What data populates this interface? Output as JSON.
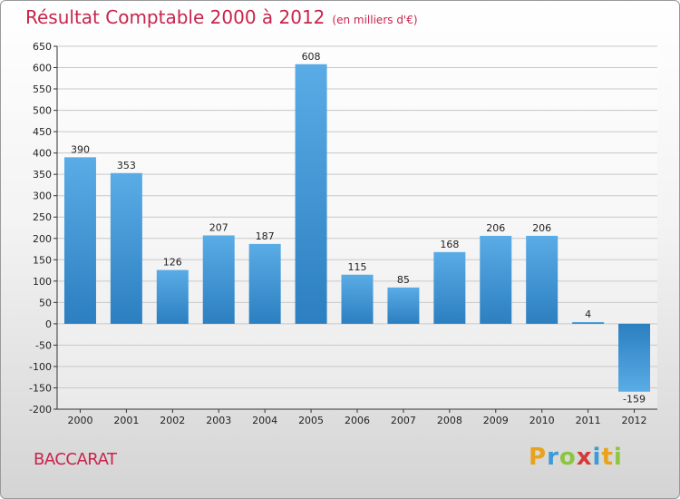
{
  "header": {
    "title": "Résultat Comptable 2000 à 2012",
    "subtitle": "(en milliers d'€)"
  },
  "footer": {
    "city": "BACCARAT",
    "logo_letters": [
      "P",
      "r",
      "o",
      "x",
      "i",
      "t",
      "i"
    ]
  },
  "colors": {
    "accent": "#c8244b",
    "bar_light": "#5aace6",
    "bar_dark": "#2c7fc0"
  },
  "chart_data": {
    "type": "bar",
    "title": "Résultat Comptable 2000 à 2012",
    "subtitle": "(en milliers d'€)",
    "categories": [
      "2000",
      "2001",
      "2002",
      "2003",
      "2004",
      "2005",
      "2006",
      "2007",
      "2008",
      "2009",
      "2010",
      "2011",
      "2012"
    ],
    "values": [
      390,
      353,
      126,
      207,
      187,
      608,
      115,
      85,
      168,
      206,
      206,
      4,
      -159
    ],
    "value_labels": [
      "390",
      "353",
      "126",
      "207",
      "187",
      "608",
      "115",
      "85",
      "168",
      "206",
      "206",
      "4",
      "-159"
    ],
    "ylim": [
      -200,
      650
    ],
    "yticks": [
      -200,
      -150,
      -100,
      -50,
      0,
      50,
      100,
      150,
      200,
      250,
      300,
      350,
      400,
      450,
      500,
      550,
      600,
      650
    ],
    "grid": true,
    "xlabel": "",
    "ylabel": ""
  }
}
